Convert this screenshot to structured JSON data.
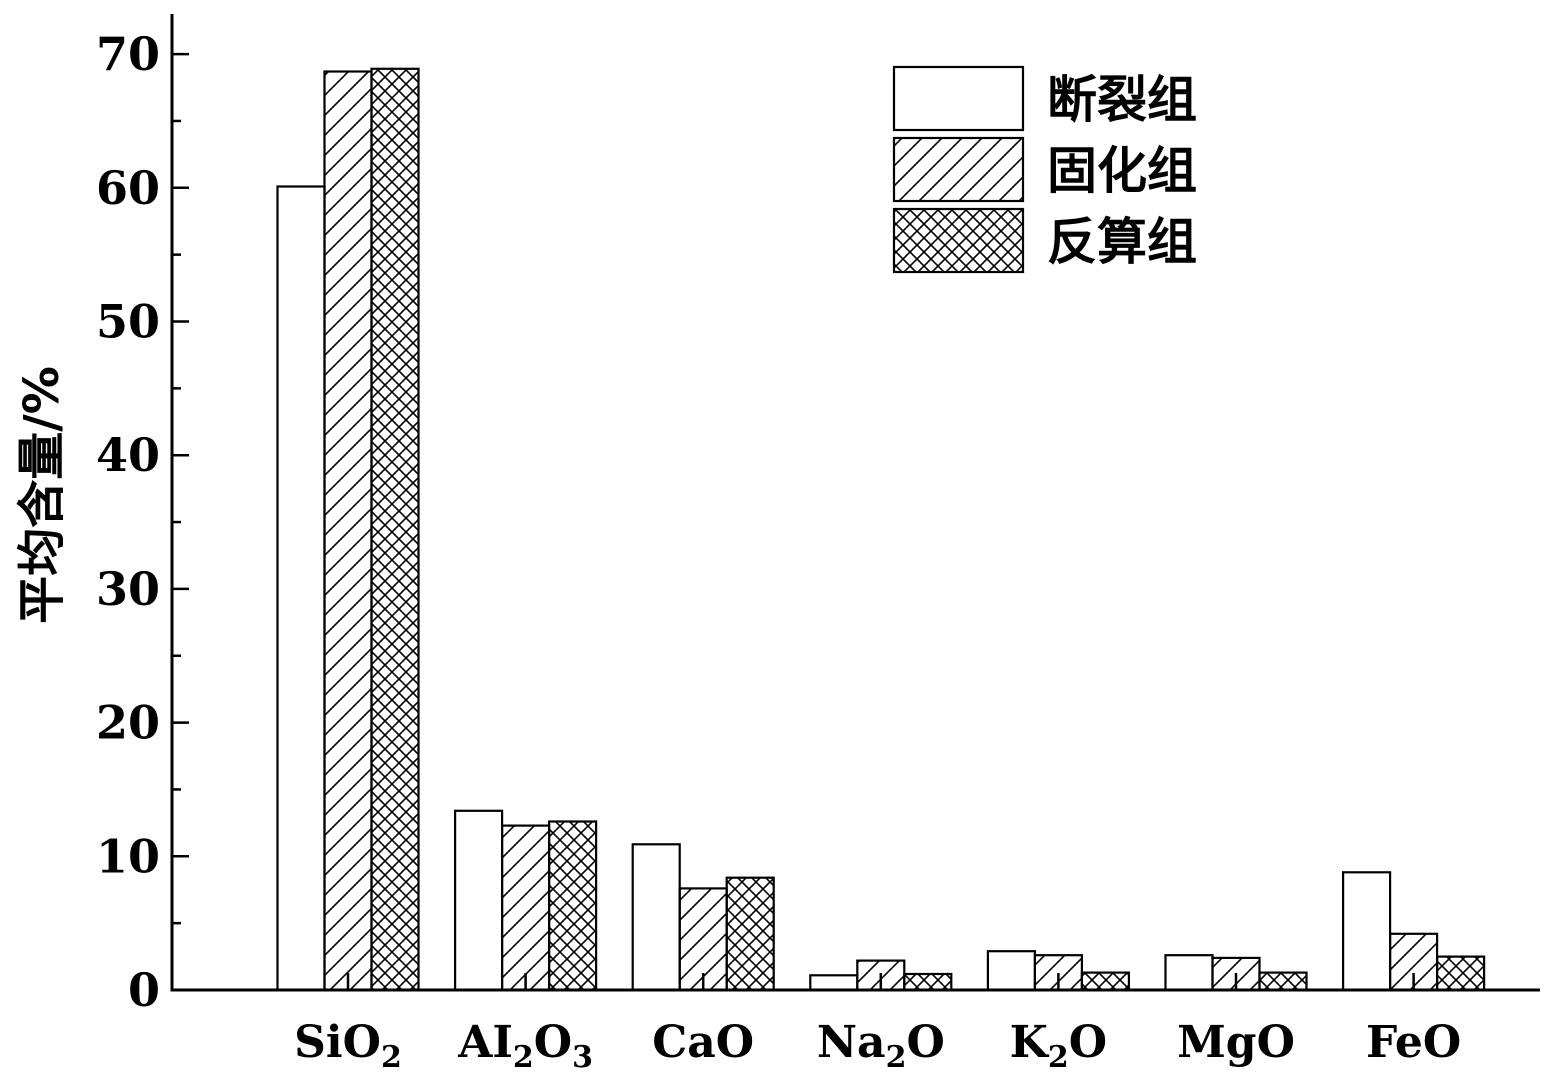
{
  "chart_data": {
    "type": "bar",
    "ylabel": "平均含量/%",
    "xlabel": "",
    "ylim": [
      0,
      73
    ],
    "yticks": [
      0,
      10,
      20,
      30,
      40,
      50,
      60,
      70
    ],
    "categories": [
      {
        "base": "SiO",
        "sub": "2",
        "tail": ""
      },
      {
        "base": "AI",
        "sub": "2",
        "tail": "O",
        "sub2": "3"
      },
      {
        "base": "CaO",
        "sub": "",
        "tail": ""
      },
      {
        "base": "Na",
        "sub": "2",
        "tail": "O"
      },
      {
        "base": "K",
        "sub": "2",
        "tail": "O"
      },
      {
        "base": "MgO",
        "sub": "",
        "tail": ""
      },
      {
        "base": "FeO",
        "sub": "",
        "tail": ""
      }
    ],
    "series": [
      {
        "name": "断裂组",
        "pattern": "empty",
        "values": [
          60.1,
          13.4,
          10.9,
          1.1,
          2.9,
          2.6,
          8.8
        ]
      },
      {
        "name": "固化组",
        "pattern": "hatch",
        "values": [
          68.7,
          12.3,
          7.6,
          2.2,
          2.6,
          2.4,
          4.2
        ]
      },
      {
        "name": "反算组",
        "pattern": "crosshatch",
        "values": [
          68.9,
          12.6,
          8.4,
          1.2,
          1.3,
          1.3,
          2.5
        ]
      }
    ],
    "legend_position": "top-right",
    "grid": false
  }
}
